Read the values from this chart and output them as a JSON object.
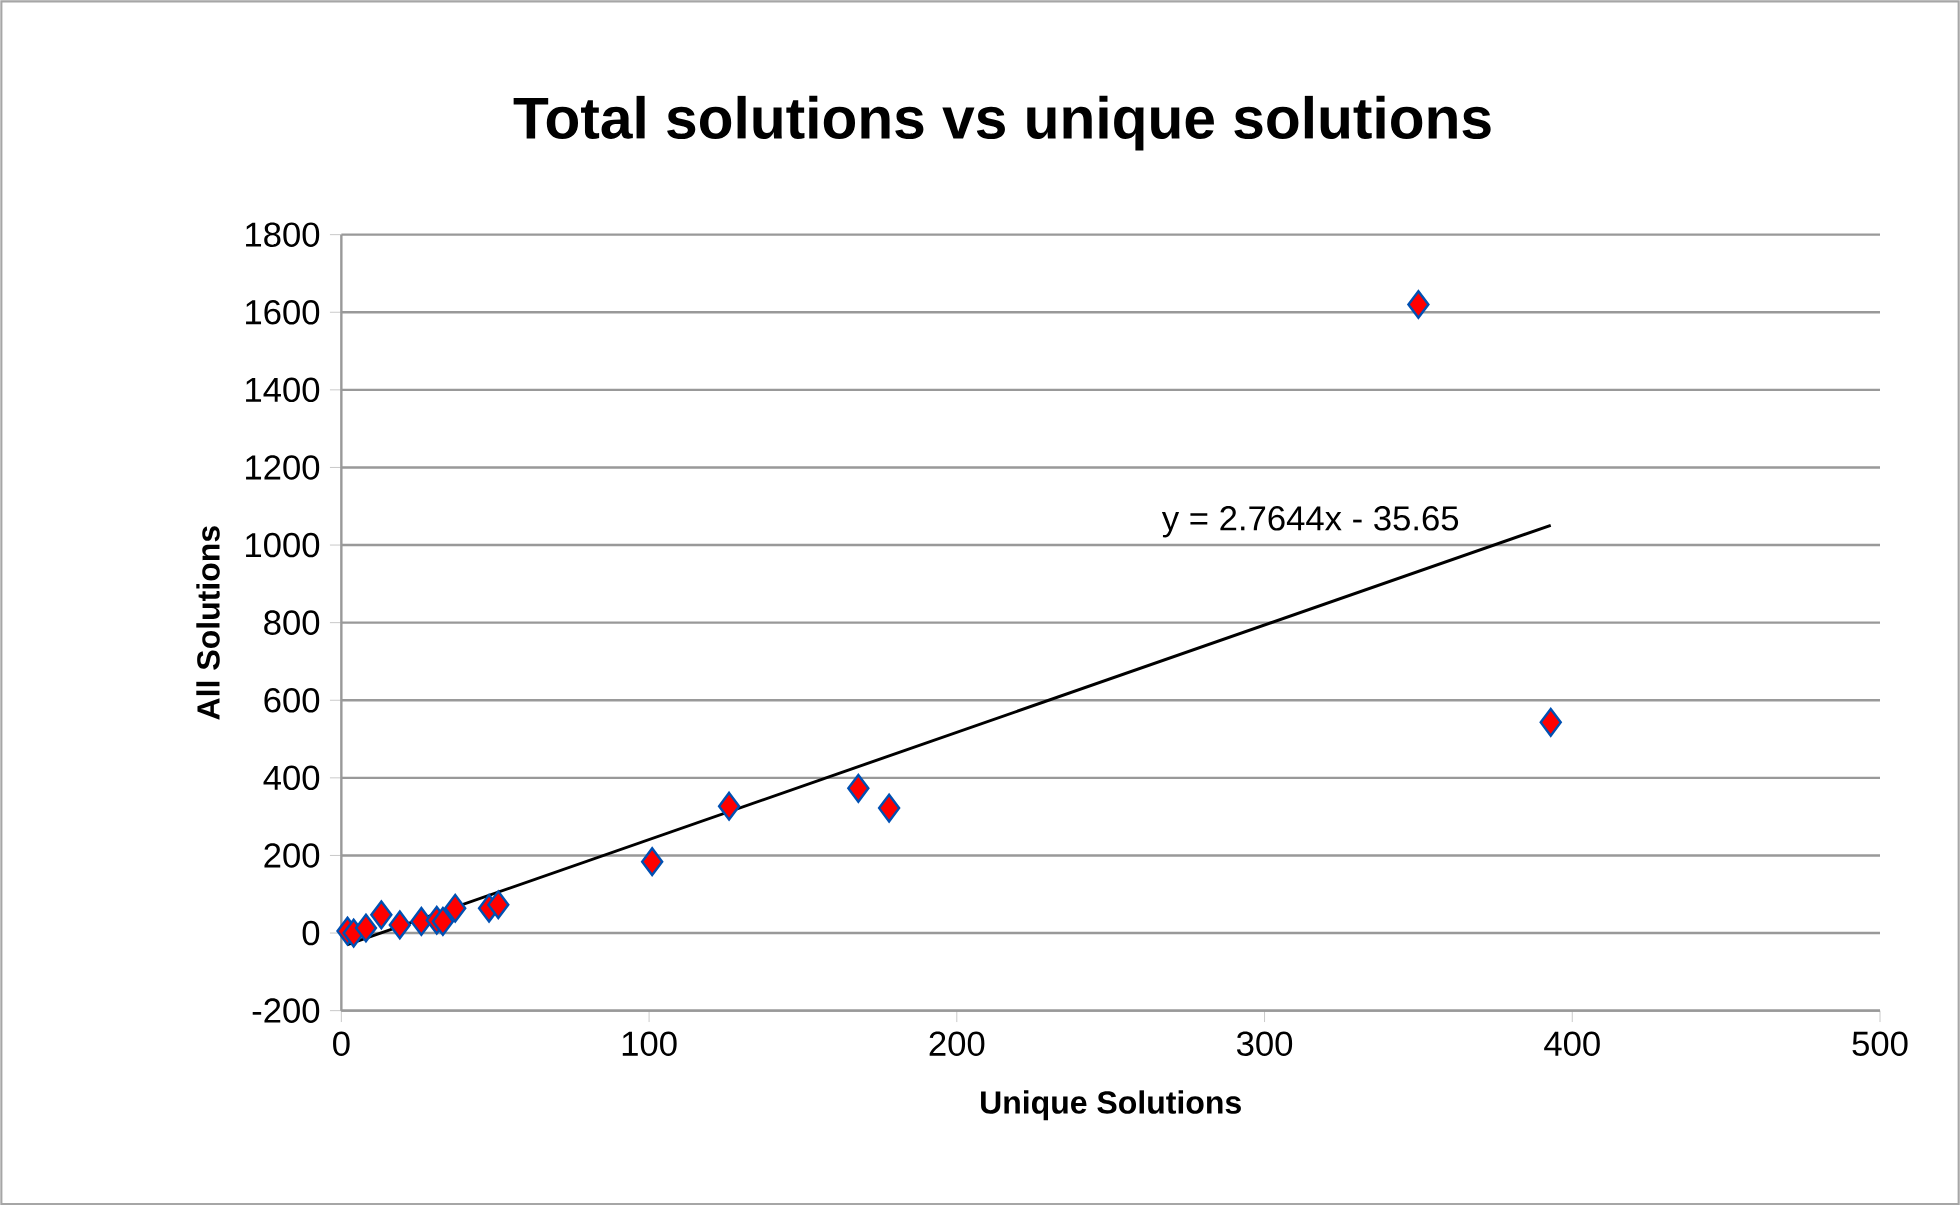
{
  "chart_data": {
    "type": "scatter",
    "title": "Total solutions vs unique solutions",
    "xlabel": "Unique Solutions",
    "ylabel": "All Solutions",
    "xlim": [
      0,
      500
    ],
    "xticks": [
      0,
      100,
      200,
      300,
      400,
      500
    ],
    "ylim": [
      -200,
      1800
    ],
    "yticks": [
      -200,
      0,
      200,
      400,
      600,
      800,
      1000,
      1200,
      1400,
      1600,
      1800
    ],
    "grid": "y",
    "marker": "diamond",
    "series": [
      {
        "color": "#ff0000",
        "x": [
          2,
          4,
          8,
          13,
          19,
          26,
          31,
          33,
          37,
          48,
          51,
          101,
          126,
          168,
          178,
          350,
          393
        ],
        "values": [
          5,
          0,
          13,
          47,
          21,
          30,
          33,
          30,
          64,
          64,
          73,
          184,
          327,
          373,
          322,
          1620,
          543
        ]
      },
      {
        "type": "line",
        "marker": "none",
        "color": "#000000",
        "x": [
          2,
          393
        ],
        "values": [
          -30,
          1051
        ]
      }
    ],
    "annotations": [
      "y = 2.7644x - 35.65"
    ]
  }
}
